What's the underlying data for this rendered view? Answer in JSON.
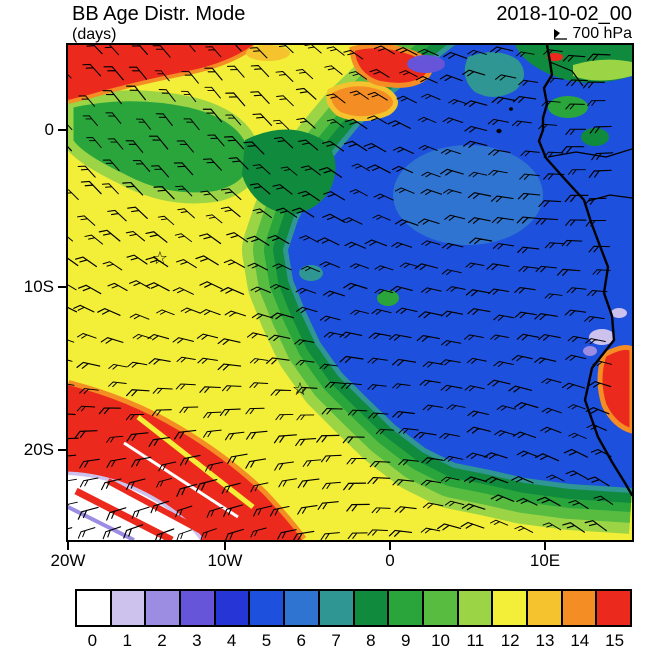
{
  "header": {
    "title": "BB Age Distr. Mode",
    "units_label": "(days)",
    "datetime": "2018-10-02_00",
    "level": "700 hPa",
    "level_icon": "wind-barb-icon"
  },
  "axes": {
    "y_ticks": [
      "0",
      "10S",
      "20S"
    ],
    "x_ticks": [
      "20W",
      "10W",
      "0",
      "10E"
    ]
  },
  "colorbar": {
    "labels": [
      "0",
      "1",
      "2",
      "3",
      "4",
      "5",
      "6",
      "7",
      "8",
      "9",
      "10",
      "11",
      "12",
      "13",
      "14",
      "15"
    ],
    "colors": [
      "#ffffff",
      "#cdc2ee",
      "#9c8ce2",
      "#6655d8",
      "#2636d6",
      "#1d50dc",
      "#2f74d0",
      "#2f9694",
      "#108a3c",
      "#2aa53c",
      "#57bc40",
      "#9bd546",
      "#f3ef38",
      "#f4c32e",
      "#f58d25",
      "#eb2a1d"
    ]
  },
  "chart_data": {
    "type": "heatmap",
    "title": "BB Age Distr. Mode",
    "variable_units": "days",
    "pressure_level": "700 hPa",
    "datetime": "2018-10-02_00",
    "x_axis": {
      "tick_labels": [
        "20W",
        "10W",
        "0",
        "10E"
      ],
      "lon_range_deg": [
        -20,
        14.7
      ]
    },
    "y_axis": {
      "tick_labels": [
        "0",
        "10S",
        "20S"
      ],
      "lat_range_deg": [
        5.4,
        -26.1
      ]
    },
    "color_levels": {
      "values": [
        0,
        1,
        2,
        3,
        4,
        5,
        6,
        7,
        8,
        9,
        10,
        11,
        12,
        13,
        14,
        15
      ],
      "colors": [
        "#ffffff",
        "#cdc2ee",
        "#9c8ce2",
        "#6655d8",
        "#2636d6",
        "#1d50dc",
        "#2f74d0",
        "#2f9694",
        "#108a3c",
        "#2aa53c",
        "#57bc40",
        "#9bd546",
        "#f3ef38",
        "#f4c32e",
        "#f58d25",
        "#eb2a1d"
      ]
    },
    "overlay": "wind barbs across the whole domain",
    "coastline": "West African coast (Cameroon to Namibia) along the right side",
    "markers": [
      {
        "symbol": "star",
        "lon_deg": -13.9,
        "lat_deg": -8.2
      },
      {
        "symbol": "star",
        "lon_deg": -5.5,
        "lat_deg": -16.4
      }
    ],
    "regions_summary": [
      {
        "age_days": "14-15",
        "color": "red/orange",
        "where": "strip along the northern edge (20W-5W), blob near 2W 4N, large southwest wedge below ~16S west of ~7W, and a coastal patch near 14E 15S"
      },
      {
        "age_days": "12-13",
        "color": "yellow",
        "where": "broad band sweeping from the northwest near the equator southeastward across 10W-0 down to 15-25S and along the southern edge"
      },
      {
        "age_days": "8-11",
        "color": "greens",
        "where": "wide transition bands between the yellow and blue regions, upper-left band near 0-3S, and patches along the top-right corner and coast"
      },
      {
        "age_days": "4-6",
        "color": "blue",
        "where": "large young-air region covering the eastern basin to the African coast from ~3N to ~22S"
      },
      {
        "age_days": "7",
        "color": "teal",
        "where": "thin fringes at the blue-region edges and a patch near 8E 3N"
      },
      {
        "age_days": "0-2",
        "color": "white/lavender",
        "where": "pocket in the far southwest corner with red streaks, small coastal patches near 13E 12S"
      }
    ]
  }
}
